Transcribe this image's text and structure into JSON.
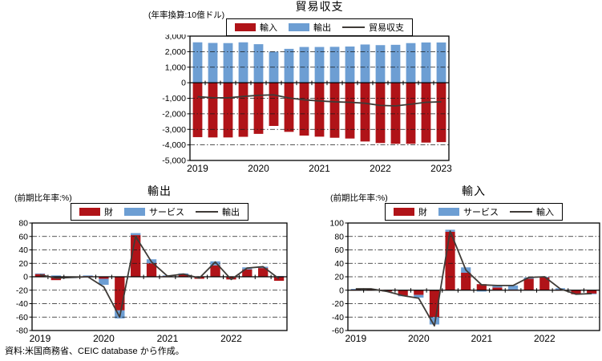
{
  "page": {
    "background": "#ffffff"
  },
  "colors": {
    "red": "#b01318",
    "blue": "#6d9ed3",
    "line": "#3f3b37",
    "axis": "#000000"
  },
  "source_note": "資料:米国商務省、CEIC database から作成。",
  "chart_data": [
    {
      "id": "trade-balance",
      "type": "bar",
      "bar_mode": "stacked",
      "line_overlay": true,
      "title": "貿易収支",
      "unit_note": "(年率換算:10億ドル)",
      "categories": [
        "2019Q1",
        "2019Q2",
        "2019Q3",
        "2019Q4",
        "2020Q1",
        "2020Q2",
        "2020Q3",
        "2020Q4",
        "2021Q1",
        "2021Q2",
        "2021Q3",
        "2021Q4",
        "2022Q1",
        "2022Q2",
        "2022Q3",
        "2022Q4",
        "2023Q1"
      ],
      "series": [
        {
          "name": "輸入",
          "color": "red",
          "values": [
            -3500,
            -3520,
            -3520,
            -3480,
            -3290,
            -2780,
            -3160,
            -3400,
            -3470,
            -3540,
            -3590,
            -3780,
            -3880,
            -3930,
            -3930,
            -3850,
            -3820
          ]
        },
        {
          "name": "輸出",
          "color": "blue",
          "values": [
            2600,
            2560,
            2550,
            2600,
            2480,
            2000,
            2180,
            2300,
            2300,
            2310,
            2330,
            2460,
            2420,
            2440,
            2550,
            2590,
            2590
          ]
        }
      ],
      "line_series": {
        "name": "貿易収支",
        "color": "line",
        "values": [
          -900,
          -960,
          -970,
          -880,
          -810,
          -780,
          -980,
          -1100,
          -1170,
          -1230,
          -1260,
          -1320,
          -1460,
          -1490,
          -1380,
          -1260,
          -1230
        ]
      },
      "ylim": [
        -5000,
        3000
      ],
      "ystep": 1000,
      "y_format": "comma",
      "x_ticks": [
        {
          "label": "2019",
          "slot": 0
        },
        {
          "label": "2020",
          "slot": 4
        },
        {
          "label": "2021",
          "slot": 8
        },
        {
          "label": "2022",
          "slot": 12
        },
        {
          "label": "2023",
          "slot": 16
        }
      ],
      "grid": "dash-dot",
      "legend_position": "top"
    },
    {
      "id": "exports",
      "type": "bar",
      "bar_mode": "stacked",
      "line_overlay": true,
      "title": "輸出",
      "unit_note": "(前期比年率:%)",
      "categories": [
        "2019Q1",
        "2019Q2",
        "2019Q3",
        "2019Q4",
        "2020Q1",
        "2020Q2",
        "2020Q3",
        "2020Q4",
        "2021Q1",
        "2021Q2",
        "2021Q3",
        "2021Q4",
        "2022Q1",
        "2022Q2",
        "2022Q3",
        "2022Q4"
      ],
      "series": [
        {
          "name": "財",
          "color": "red",
          "values": [
            4,
            -5,
            -1,
            1,
            -3,
            -50,
            62,
            20,
            1,
            3,
            -3,
            17,
            -4,
            11,
            13,
            -6
          ]
        },
        {
          "name": "サービス",
          "color": "blue",
          "values": [
            1,
            2,
            -1,
            1,
            -9,
            -12,
            3,
            6,
            1,
            2,
            0,
            6,
            0,
            3,
            2,
            1
          ]
        }
      ],
      "line_series": {
        "name": "輸出",
        "color": "line",
        "values": [
          3,
          -2,
          -1,
          0,
          -15,
          -60,
          60,
          22,
          1,
          4,
          -2,
          22,
          -4,
          13,
          15,
          -3
        ]
      },
      "ylim": [
        -80,
        80
      ],
      "ystep": 20,
      "y_format": "plain",
      "x_ticks": [
        {
          "label": "2019",
          "slot": 0
        },
        {
          "label": "2020",
          "slot": 4
        },
        {
          "label": "2021",
          "slot": 8
        },
        {
          "label": "2022",
          "slot": 12
        }
      ],
      "grid": "dash-dot",
      "legend_position": "top"
    },
    {
      "id": "imports",
      "type": "bar",
      "bar_mode": "stacked",
      "line_overlay": true,
      "title": "輸入",
      "unit_note": "(前期比年率:%)",
      "categories": [
        "2019Q1",
        "2019Q2",
        "2019Q3",
        "2019Q4",
        "2020Q1",
        "2020Q2",
        "2020Q3",
        "2020Q4",
        "2021Q1",
        "2021Q2",
        "2021Q3",
        "2021Q4",
        "2022Q1",
        "2022Q2",
        "2022Q3",
        "2022Q4"
      ],
      "series": [
        {
          "name": "財",
          "color": "red",
          "values": [
            1,
            1,
            -2,
            -8,
            -7,
            -40,
            87,
            26,
            9,
            4,
            1,
            17,
            19,
            1,
            -6,
            -5
          ]
        },
        {
          "name": "サービス",
          "color": "blue",
          "values": [
            1,
            1,
            0,
            -1,
            -4,
            -11,
            3,
            8,
            -2,
            3,
            6,
            2,
            1,
            2,
            0,
            -1
          ]
        }
      ],
      "line_series": {
        "name": "輸入",
        "color": "line",
        "values": [
          2,
          2,
          -2,
          -8,
          -12,
          -53,
          88,
          30,
          8,
          7,
          7,
          19,
          20,
          2,
          -6,
          -5
        ]
      },
      "ylim": [
        -60,
        100
      ],
      "ystep": 20,
      "y_format": "plain",
      "x_ticks": [
        {
          "label": "2019",
          "slot": 0
        },
        {
          "label": "2020",
          "slot": 4
        },
        {
          "label": "2021",
          "slot": 8
        },
        {
          "label": "2022",
          "slot": 12
        }
      ],
      "grid": "dash-dot",
      "legend_position": "top"
    }
  ]
}
